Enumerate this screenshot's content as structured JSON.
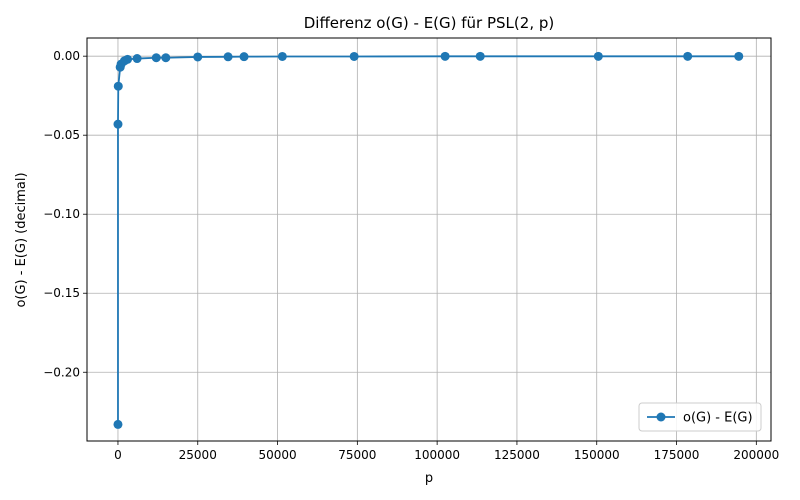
{
  "chart_data": {
    "type": "line",
    "title": "Differenz o(G) - E(G) für PSL(2, p)",
    "xlabel": "p",
    "ylabel": "o(G) - E(G) (decimal)",
    "xlim": [
      -9700,
      204600
    ],
    "ylim": [
      -0.2435,
      0.0115
    ],
    "xticks": [
      0,
      25000,
      50000,
      75000,
      100000,
      125000,
      150000,
      175000,
      200000
    ],
    "xtick_labels": [
      "0",
      "25000",
      "50000",
      "75000",
      "100000",
      "125000",
      "150000",
      "175000",
      "200000"
    ],
    "yticks": [
      0.0,
      -0.05,
      -0.1,
      -0.15,
      -0.2
    ],
    "ytick_labels": [
      "0.00",
      "−0.05",
      "−0.10",
      "−0.15",
      "−0.20"
    ],
    "grid": true,
    "legend_position": "bottom-right",
    "color": "#1f77b4",
    "series": [
      {
        "name": "o(G) - E(G)",
        "x": [
          5,
          7,
          100,
          700,
          1000,
          2000,
          3000,
          6000,
          12000,
          15000,
          25000,
          34500,
          39500,
          51500,
          74000,
          102500,
          113500,
          150500,
          178500,
          194500
        ],
        "y": [
          -0.233,
          -0.043,
          -0.019,
          -0.007,
          -0.005,
          -0.003,
          -0.002,
          -0.0015,
          -0.001,
          -0.001,
          -0.0005,
          -0.0004,
          -0.0003,
          -0.0002,
          -0.0002,
          -0.0001,
          -0.0001,
          -0.0001,
          -0.0001,
          -0.0001
        ]
      }
    ]
  }
}
